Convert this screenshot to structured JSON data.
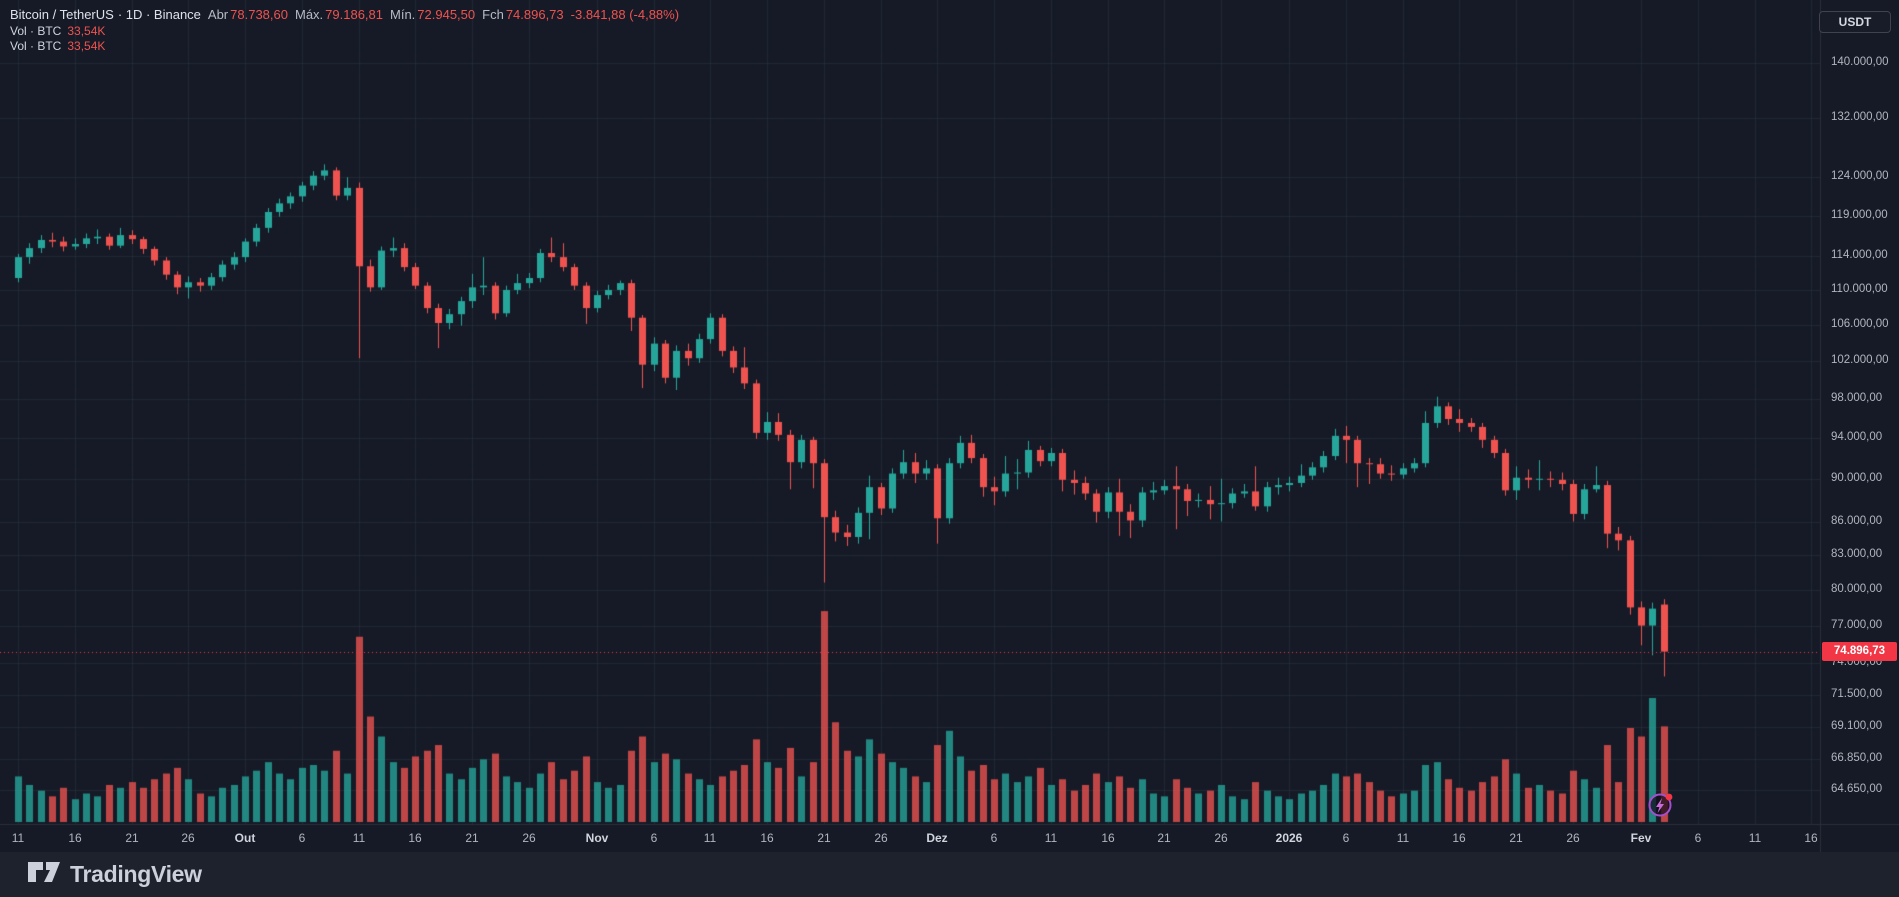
{
  "legend": {
    "symbol": "Bitcoin / TetherUS",
    "meta": "· 1D · Binance",
    "ohlc": {
      "open_label": "Abr",
      "open": "78.738,60",
      "high_label": "Máx.",
      "high": "79.186,81",
      "low_label": "Mín.",
      "low": "72.945,50",
      "close_label": "Fch",
      "close": "74.896,73",
      "change": "-3.841,88 (-4,88%)"
    },
    "volume_rows": [
      {
        "label": "Vol · BTC",
        "value": "33,54K"
      },
      {
        "label": "Vol · BTC",
        "value": "33,54K"
      }
    ]
  },
  "price_scale": {
    "currency_button": "USDT",
    "last_price_label": "74.896,73",
    "labels": [
      {
        "v": 140000,
        "label": "140.000,00"
      },
      {
        "v": 132000,
        "label": "132.000,00"
      },
      {
        "v": 124000,
        "label": "124.000,00"
      },
      {
        "v": 119000,
        "label": "119.000,00"
      },
      {
        "v": 114000,
        "label": "114.000,00"
      },
      {
        "v": 110000,
        "label": "110.000,00"
      },
      {
        "v": 106000,
        "label": "106.000,00"
      },
      {
        "v": 102000,
        "label": "102.000,00"
      },
      {
        "v": 98000,
        "label": "98.000,00"
      },
      {
        "v": 94000,
        "label": "94.000,00"
      },
      {
        "v": 90000,
        "label": "90.000,00"
      },
      {
        "v": 86000,
        "label": "86.000,00"
      },
      {
        "v": 83000,
        "label": "83.000,00"
      },
      {
        "v": 80000,
        "label": "80.000,00"
      },
      {
        "v": 77000,
        "label": "77.000,00"
      },
      {
        "v": 74000,
        "label": "74.000,00"
      },
      {
        "v": 71500,
        "label": "71.500,00"
      },
      {
        "v": 69100,
        "label": "69.100,00"
      },
      {
        "v": 66850,
        "label": "66.850,00"
      },
      {
        "v": 64650,
        "label": "64.650,00"
      }
    ]
  },
  "time_scale": {
    "labels": [
      {
        "label": "11",
        "day": 0,
        "major": false
      },
      {
        "label": "16",
        "day": 5,
        "major": false
      },
      {
        "label": "21",
        "day": 10,
        "major": false
      },
      {
        "label": "26",
        "day": 15,
        "major": false
      },
      {
        "label": "Out",
        "day": 20,
        "major": true
      },
      {
        "label": "6",
        "day": 25,
        "major": false
      },
      {
        "label": "11",
        "day": 30,
        "major": false
      },
      {
        "label": "16",
        "day": 35,
        "major": false
      },
      {
        "label": "21",
        "day": 40,
        "major": false
      },
      {
        "label": "26",
        "day": 45,
        "major": false
      },
      {
        "label": "Nov",
        "day": 51,
        "major": true
      },
      {
        "label": "6",
        "day": 56,
        "major": false
      },
      {
        "label": "11",
        "day": 61,
        "major": false
      },
      {
        "label": "16",
        "day": 66,
        "major": false
      },
      {
        "label": "21",
        "day": 71,
        "major": false
      },
      {
        "label": "26",
        "day": 76,
        "major": false
      },
      {
        "label": "Dez",
        "day": 81,
        "major": true
      },
      {
        "label": "6",
        "day": 86,
        "major": false
      },
      {
        "label": "11",
        "day": 91,
        "major": false
      },
      {
        "label": "16",
        "day": 96,
        "major": false
      },
      {
        "label": "21",
        "day": 101,
        "major": false
      },
      {
        "label": "26",
        "day": 106,
        "major": false
      },
      {
        "label": "2026",
        "day": 112,
        "major": true
      },
      {
        "label": "6",
        "day": 117,
        "major": false
      },
      {
        "label": "11",
        "day": 122,
        "major": false
      },
      {
        "label": "16",
        "day": 127,
        "major": false
      },
      {
        "label": "21",
        "day": 132,
        "major": false
      },
      {
        "label": "26",
        "day": 137,
        "major": false
      },
      {
        "label": "Fev",
        "day": 143,
        "major": true
      },
      {
        "label": "6",
        "day": 148,
        "major": false
      },
      {
        "label": "11",
        "day": 153,
        "major": false
      },
      {
        "label": "16",
        "day": 158,
        "major": false
      }
    ]
  },
  "watermark": {
    "text": "TradingView"
  },
  "colors": {
    "background": "#151a26",
    "up": "#26a69a",
    "down": "#ef5350",
    "accent_red": "#f23645",
    "axis_text": "#b2b5be",
    "grid": "rgba(190,200,220,0.07)",
    "separator": "#2a2e39",
    "text_primary": "#d8dce6"
  },
  "chart_data": {
    "type": "candlestick",
    "title": "Bitcoin / TetherUS · 1D · Binance",
    "symbol": "Bitcoin / TetherUS",
    "exchange": "Binance",
    "interval": "1D",
    "quote_currency": "USDT",
    "scale": "logarithmic",
    "grid": true,
    "price_axis_ticks": [
      140000,
      132000,
      124000,
      119000,
      114000,
      110000,
      106000,
      102000,
      98000,
      94000,
      90000,
      86000,
      83000,
      80000,
      77000,
      74000,
      71500,
      69100,
      66850,
      64650
    ],
    "last_candle": {
      "open": 78738.6,
      "high": 79186.81,
      "low": 72945.5,
      "close": 74896.73,
      "change": -3841.88,
      "change_pct": -4.88,
      "volume_kbtc": 33.54
    },
    "last_price": 74896.73,
    "price_unit": "thousand USDT per element [open,high,low,close,volume_kBTC]",
    "x_unit": "daily candles, day index from first visible bar (11) to last bar (after Fev)",
    "candles": [
      [
        111.4,
        114.3,
        110.9,
        113.9,
        16
      ],
      [
        113.9,
        115.6,
        113.1,
        115.0,
        13
      ],
      [
        115.0,
        116.6,
        114.4,
        116.0,
        11
      ],
      [
        116.0,
        116.9,
        115.1,
        115.8,
        9
      ],
      [
        115.8,
        116.4,
        114.6,
        115.2,
        12
      ],
      [
        115.2,
        116.2,
        114.8,
        115.5,
        8
      ],
      [
        115.5,
        116.8,
        115.0,
        116.2,
        10
      ],
      [
        116.2,
        117.3,
        115.5,
        116.4,
        9
      ],
      [
        116.4,
        116.8,
        114.8,
        115.3,
        13
      ],
      [
        115.3,
        117.5,
        115.0,
        116.6,
        12
      ],
      [
        116.6,
        117.2,
        115.5,
        116.1,
        14
      ],
      [
        116.1,
        116.4,
        114.3,
        114.9,
        12
      ],
      [
        114.9,
        115.2,
        112.9,
        113.5,
        15
      ],
      [
        113.5,
        113.9,
        111.2,
        111.8,
        17
      ],
      [
        111.8,
        112.2,
        109.5,
        110.3,
        19
      ],
      [
        110.3,
        111.6,
        109.0,
        110.9,
        15
      ],
      [
        110.9,
        111.4,
        109.8,
        110.5,
        10
      ],
      [
        110.5,
        112.0,
        110.0,
        111.5,
        9
      ],
      [
        111.5,
        113.5,
        111.0,
        113.0,
        12
      ],
      [
        113.0,
        114.5,
        112.4,
        113.9,
        13
      ],
      [
        113.9,
        116.2,
        113.3,
        115.8,
        16
      ],
      [
        115.8,
        118.0,
        115.2,
        117.5,
        18
      ],
      [
        117.5,
        120.0,
        116.9,
        119.5,
        21
      ],
      [
        119.5,
        121.2,
        118.9,
        120.6,
        17
      ],
      [
        120.6,
        122.0,
        119.9,
        121.5,
        15
      ],
      [
        121.5,
        123.4,
        120.8,
        122.9,
        19
      ],
      [
        122.9,
        124.8,
        122.3,
        124.2,
        20
      ],
      [
        124.2,
        125.7,
        123.6,
        124.9,
        18
      ],
      [
        124.9,
        125.3,
        121.0,
        121.6,
        25
      ],
      [
        121.6,
        124.0,
        121.0,
        122.6,
        17
      ],
      [
        122.6,
        123.3,
        102.3,
        112.8,
        65
      ],
      [
        112.8,
        113.6,
        109.8,
        110.3,
        37
      ],
      [
        110.3,
        115.2,
        110.0,
        114.7,
        30
      ],
      [
        114.7,
        116.3,
        113.9,
        115.0,
        21
      ],
      [
        115.0,
        115.6,
        112.2,
        112.7,
        19
      ],
      [
        112.7,
        113.2,
        110.1,
        110.5,
        23
      ],
      [
        110.5,
        110.9,
        107.3,
        107.9,
        25
      ],
      [
        107.9,
        108.4,
        103.4,
        106.2,
        27
      ],
      [
        106.2,
        107.8,
        105.5,
        107.2,
        17
      ],
      [
        107.2,
        109.2,
        105.9,
        108.7,
        15
      ],
      [
        108.7,
        111.9,
        107.9,
        110.3,
        19
      ],
      [
        110.3,
        113.9,
        109.4,
        110.5,
        22
      ],
      [
        110.5,
        110.9,
        106.6,
        107.3,
        24
      ],
      [
        107.3,
        110.5,
        106.9,
        110.0,
        16
      ],
      [
        110.0,
        111.9,
        109.5,
        110.8,
        14
      ],
      [
        110.8,
        112.0,
        110.2,
        111.4,
        12
      ],
      [
        111.4,
        114.9,
        110.9,
        114.4,
        17
      ],
      [
        114.4,
        116.3,
        113.3,
        113.9,
        21
      ],
      [
        113.9,
        115.6,
        112.2,
        112.7,
        15
      ],
      [
        112.7,
        113.1,
        110.0,
        110.5,
        18
      ],
      [
        110.5,
        110.9,
        106.1,
        107.9,
        23
      ],
      [
        107.9,
        109.9,
        107.4,
        109.4,
        14
      ],
      [
        109.4,
        110.6,
        108.9,
        110.0,
        12
      ],
      [
        110.0,
        111.1,
        109.4,
        110.8,
        13
      ],
      [
        110.8,
        111.2,
        105.3,
        106.8,
        25
      ],
      [
        106.8,
        107.1,
        99.1,
        101.6,
        30
      ],
      [
        101.6,
        104.6,
        100.9,
        103.9,
        21
      ],
      [
        103.9,
        104.3,
        99.6,
        100.2,
        24
      ],
      [
        100.2,
        103.7,
        98.9,
        103.1,
        22
      ],
      [
        103.1,
        103.9,
        101.5,
        102.3,
        17
      ],
      [
        102.3,
        105.0,
        101.8,
        104.4,
        15
      ],
      [
        104.4,
        107.3,
        103.9,
        106.8,
        13
      ],
      [
        106.8,
        107.2,
        102.5,
        103.1,
        16
      ],
      [
        103.1,
        103.6,
        100.7,
        101.3,
        18
      ],
      [
        101.3,
        103.5,
        99.0,
        99.6,
        20
      ],
      [
        99.6,
        100.0,
        93.9,
        94.5,
        29
      ],
      [
        94.5,
        96.6,
        93.8,
        95.6,
        21
      ],
      [
        95.6,
        96.5,
        93.7,
        94.3,
        19
      ],
      [
        94.3,
        94.8,
        89.0,
        91.6,
        26
      ],
      [
        91.6,
        94.3,
        91.0,
        93.8,
        16
      ],
      [
        93.8,
        94.1,
        89.1,
        91.5,
        21
      ],
      [
        91.5,
        91.9,
        80.6,
        86.4,
        74
      ],
      [
        86.4,
        87.0,
        84.2,
        85.0,
        35
      ],
      [
        85.0,
        85.7,
        83.8,
        84.6,
        25
      ],
      [
        84.6,
        87.3,
        84.0,
        86.8,
        23
      ],
      [
        86.8,
        90.3,
        84.4,
        89.2,
        29
      ],
      [
        89.2,
        89.6,
        86.6,
        87.2,
        24
      ],
      [
        87.2,
        91.0,
        86.8,
        90.5,
        21
      ],
      [
        90.5,
        92.8,
        90.0,
        91.6,
        19
      ],
      [
        91.6,
        92.5,
        89.6,
        90.5,
        16
      ],
      [
        90.5,
        91.8,
        89.9,
        91.0,
        14
      ],
      [
        91.0,
        91.4,
        84.0,
        86.3,
        27
      ],
      [
        86.3,
        92.0,
        85.8,
        91.5,
        32
      ],
      [
        91.5,
        94.2,
        91.0,
        93.5,
        23
      ],
      [
        93.5,
        94.3,
        91.5,
        92.0,
        18
      ],
      [
        92.0,
        92.4,
        88.3,
        89.2,
        20
      ],
      [
        89.2,
        90.2,
        87.5,
        88.8,
        15
      ],
      [
        88.8,
        92.2,
        88.3,
        90.5,
        17
      ],
      [
        90.5,
        91.9,
        89.0,
        90.6,
        14
      ],
      [
        90.6,
        93.7,
        90.1,
        92.8,
        16
      ],
      [
        92.8,
        93.2,
        91.2,
        91.7,
        19
      ],
      [
        91.7,
        93.0,
        91.2,
        92.5,
        13
      ],
      [
        92.5,
        92.9,
        88.8,
        89.9,
        15
      ],
      [
        89.9,
        90.8,
        88.5,
        89.6,
        11
      ],
      [
        89.6,
        90.2,
        88.0,
        88.6,
        13
      ],
      [
        88.6,
        89.0,
        85.9,
        86.9,
        17
      ],
      [
        86.9,
        89.2,
        86.3,
        88.7,
        14
      ],
      [
        88.7,
        90.0,
        84.7,
        86.9,
        16
      ],
      [
        86.9,
        87.6,
        84.5,
        86.1,
        12
      ],
      [
        86.1,
        89.2,
        85.5,
        88.7,
        15
      ],
      [
        88.7,
        89.7,
        88.0,
        88.9,
        10
      ],
      [
        88.9,
        89.9,
        88.5,
        89.3,
        9
      ],
      [
        89.3,
        91.2,
        85.3,
        89.0,
        15
      ],
      [
        89.0,
        89.5,
        86.5,
        87.9,
        12
      ],
      [
        87.9,
        88.6,
        87.3,
        88.0,
        10
      ],
      [
        88.0,
        89.3,
        86.2,
        87.6,
        11
      ],
      [
        87.6,
        90.0,
        86.0,
        87.7,
        13
      ],
      [
        87.7,
        89.1,
        87.2,
        88.6,
        9
      ],
      [
        88.6,
        89.5,
        88.2,
        88.8,
        8
      ],
      [
        88.8,
        91.2,
        87.0,
        87.4,
        14
      ],
      [
        87.4,
        89.7,
        86.9,
        89.2,
        11
      ],
      [
        89.2,
        90.1,
        88.5,
        89.4,
        9
      ],
      [
        89.4,
        90.2,
        88.8,
        89.6,
        8
      ],
      [
        89.6,
        91.4,
        89.2,
        90.3,
        10
      ],
      [
        90.3,
        91.6,
        89.9,
        91.1,
        11
      ],
      [
        91.1,
        92.7,
        90.6,
        92.2,
        13
      ],
      [
        92.2,
        94.9,
        91.8,
        94.2,
        17
      ],
      [
        94.2,
        95.2,
        91.5,
        93.8,
        16
      ],
      [
        93.8,
        94.2,
        89.2,
        91.5,
        17
      ],
      [
        91.5,
        92.0,
        89.5,
        91.4,
        14
      ],
      [
        91.4,
        92.0,
        90.0,
        90.5,
        11
      ],
      [
        90.5,
        91.3,
        89.8,
        90.4,
        9
      ],
      [
        90.4,
        91.5,
        90.0,
        91.0,
        10
      ],
      [
        91.0,
        92.0,
        90.6,
        91.5,
        11
      ],
      [
        91.5,
        96.7,
        91.1,
        95.5,
        20
      ],
      [
        95.5,
        98.2,
        95.0,
        97.2,
        21
      ],
      [
        97.2,
        97.6,
        95.3,
        95.9,
        15
      ],
      [
        95.9,
        96.9,
        94.6,
        95.5,
        12
      ],
      [
        95.5,
        96.0,
        94.6,
        95.1,
        11
      ],
      [
        95.1,
        95.5,
        93.0,
        93.8,
        14
      ],
      [
        93.8,
        94.2,
        92.0,
        92.5,
        16
      ],
      [
        92.5,
        92.9,
        88.4,
        88.9,
        22
      ],
      [
        88.9,
        91.2,
        88.0,
        90.1,
        17
      ],
      [
        90.1,
        90.9,
        89.1,
        89.9,
        12
      ],
      [
        89.9,
        91.8,
        88.9,
        90.0,
        13
      ],
      [
        90.0,
        90.7,
        89.2,
        89.9,
        11
      ],
      [
        89.9,
        90.6,
        88.9,
        89.5,
        10
      ],
      [
        89.5,
        89.9,
        86.0,
        86.7,
        18
      ],
      [
        86.7,
        89.5,
        86.2,
        89.0,
        15
      ],
      [
        89.0,
        91.2,
        88.7,
        89.4,
        12
      ],
      [
        89.4,
        89.8,
        83.6,
        84.9,
        27
      ],
      [
        84.9,
        85.5,
        83.4,
        84.3,
        14
      ],
      [
        84.3,
        84.7,
        77.9,
        78.5,
        33
      ],
      [
        78.5,
        79.0,
        75.4,
        77.0,
        30
      ],
      [
        77.0,
        78.9,
        74.6,
        78.4,
        43.5
      ],
      [
        78.7386,
        79.18681,
        72.9455,
        74.89673,
        33.54
      ]
    ]
  }
}
